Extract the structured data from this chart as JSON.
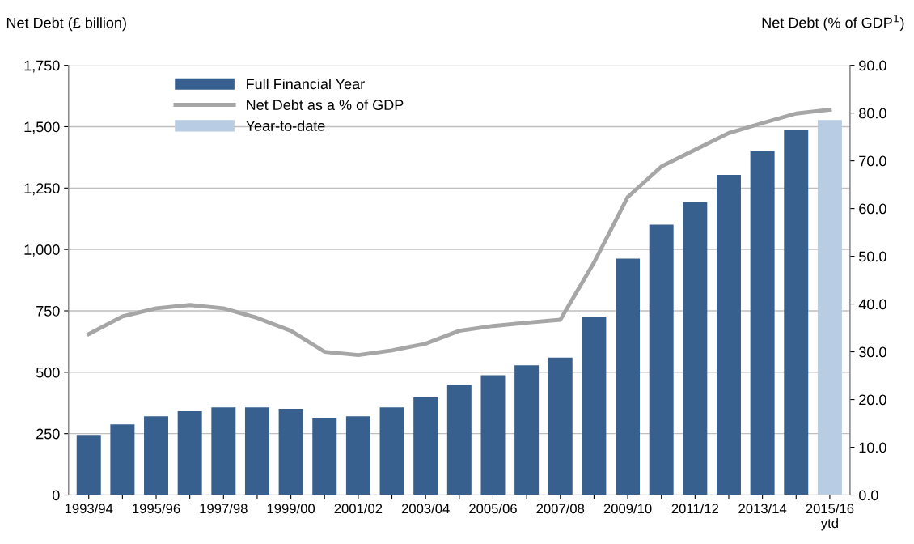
{
  "chart_data": {
    "type": "bar",
    "ylabel": "Net Debt (£ billion)",
    "y2label": "Net Debt (% of GDP$^{1}$)",
    "categories": [
      "1993/94",
      null,
      "1995/96",
      null,
      "1997/98",
      null,
      "1999/00",
      null,
      "2001/02",
      null,
      "2003/04",
      null,
      "2005/06",
      null,
      "2007/08",
      null,
      "2009/10",
      null,
      "2011/12",
      null,
      "2013/14",
      null,
      "2015/16\nytd"
    ],
    "series": [
      {
        "name": "Full Financial Year",
        "color": "#38608f",
        "values": [
          245,
          288,
          321,
          341,
          357,
          357,
          351,
          315,
          321,
          357,
          397,
          449,
          488,
          528,
          560,
          727,
          963,
          1101,
          1193,
          1304,
          1403,
          1488,
          null
        ]
      },
      {
        "name": "Net Debt as a % of GDP",
        "type": "line",
        "axis": "y2",
        "color": "#a6a6a6",
        "values": [
          33.7,
          37.4,
          39.1,
          39.8,
          39.1,
          37.1,
          34.4,
          30.0,
          29.3,
          30.3,
          31.7,
          34.4,
          35.4,
          36.1,
          36.7,
          48.7,
          62.4,
          68.8,
          72.3,
          75.8,
          77.9,
          79.9,
          80.7
        ]
      },
      {
        "name": "Year-to-date",
        "color": "#b8cce4",
        "values": [
          null,
          null,
          null,
          null,
          null,
          null,
          null,
          null,
          null,
          null,
          null,
          null,
          null,
          null,
          null,
          null,
          null,
          null,
          null,
          null,
          null,
          null,
          1527
        ]
      }
    ],
    "ylim": [
      0,
      1750
    ],
    "yticks": [
      0,
      250,
      500,
      750,
      {
        "value": 1000,
        "label": "1,000"
      },
      {
        "value": 1250,
        "label": "1,250"
      },
      {
        "value": 1500,
        "label": "1,500"
      },
      {
        "value": 1750,
        "label": "1,750"
      }
    ],
    "y2lim": [
      0,
      90
    ],
    "y2ticks": [
      {
        "value": 0,
        "label": "0.0"
      },
      {
        "value": 10,
        "label": "10.0"
      },
      {
        "value": 20,
        "label": "20.0"
      },
      {
        "value": 30,
        "label": "30.0"
      },
      {
        "value": 40,
        "label": "40.0"
      },
      {
        "value": 50,
        "label": "50.0"
      },
      {
        "value": 60,
        "label": "60.0"
      },
      {
        "value": 70,
        "label": "70.0"
      },
      {
        "value": 80,
        "label": "80.0"
      },
      {
        "value": 90,
        "label": "90.0"
      }
    ],
    "grid": "y",
    "legend": "top left"
  }
}
